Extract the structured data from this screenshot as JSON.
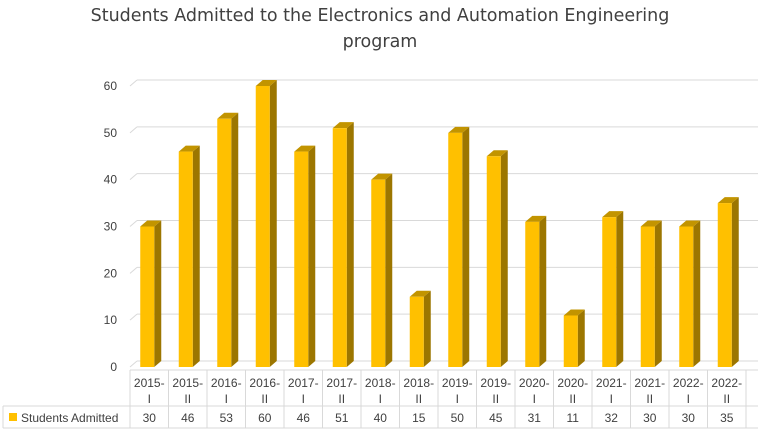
{
  "chart_data": {
    "type": "bar",
    "title": "Students Admitted to the Electronics and Automation Engineering program",
    "title_lines": [
      "Students Admitted to the Electronics and Automation Engineering",
      "program"
    ],
    "categories": [
      [
        "2015-",
        "I"
      ],
      [
        "2015-",
        "II"
      ],
      [
        "2016-",
        "I"
      ],
      [
        "2016-",
        "II"
      ],
      [
        "2017-",
        "I"
      ],
      [
        "2017-",
        "II"
      ],
      [
        "2018-",
        "I"
      ],
      [
        "2018-",
        "II"
      ],
      [
        "2019-",
        "I"
      ],
      [
        "2019-",
        "II"
      ],
      [
        "2020-",
        "I"
      ],
      [
        "2020-",
        "II"
      ],
      [
        "2021-",
        "I"
      ],
      [
        "2021-",
        "II"
      ],
      [
        "2022-",
        "I"
      ],
      [
        "2022-",
        "II"
      ]
    ],
    "series": [
      {
        "name": "Students Admitted",
        "values": [
          30,
          46,
          53,
          60,
          46,
          51,
          40,
          15,
          50,
          45,
          31,
          11,
          32,
          30,
          30,
          35
        ]
      }
    ],
    "ylim": [
      0,
      60
    ],
    "yticks": [
      0,
      10,
      20,
      30,
      40,
      50,
      60
    ],
    "grid": true,
    "legend": "data table",
    "style": "3d",
    "colors": {
      "bar_front": "#ffc000",
      "bar_side": "#9c7600",
      "bar_top": "#c29400",
      "grid": "#d9d9d9",
      "text": "#404040"
    }
  }
}
